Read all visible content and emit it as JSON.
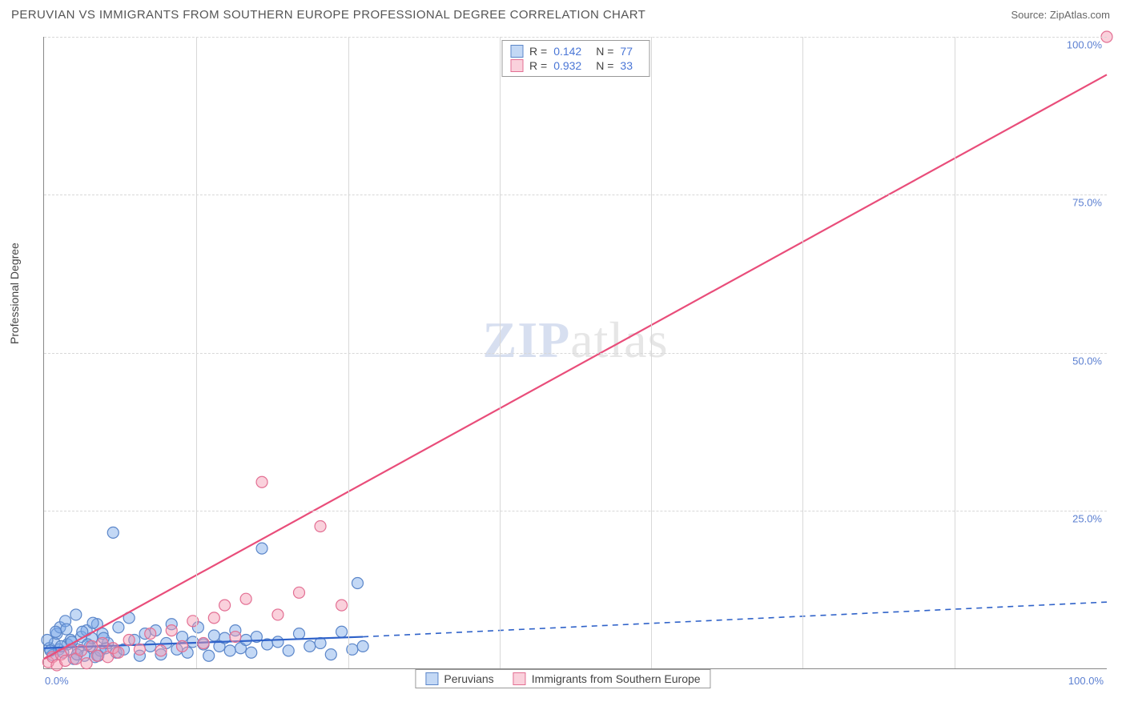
{
  "header": {
    "title": "PERUVIAN VS IMMIGRANTS FROM SOUTHERN EUROPE PROFESSIONAL DEGREE CORRELATION CHART",
    "source_prefix": "Source: ",
    "source_name": "ZipAtlas.com"
  },
  "chart": {
    "type": "scatter",
    "ylabel": "Professional Degree",
    "xlim": [
      0,
      100
    ],
    "ylim": [
      0,
      100
    ],
    "xtick_labels": {
      "min": "0.0%",
      "max": "100.0%"
    },
    "ytick_positions": [
      25,
      50,
      75,
      100
    ],
    "ytick_labels": [
      "25.0%",
      "50.0%",
      "75.0%",
      "100.0%"
    ],
    "xgrid_positions": [
      14.3,
      28.6,
      42.9,
      57.1,
      71.4,
      85.7
    ],
    "grid_color": "#d8d8d8",
    "background_color": "#ffffff",
    "axis_color": "#888888",
    "tick_label_color": "#5b7fd1",
    "watermark": {
      "zip": "ZIP",
      "atlas": "atlas"
    },
    "series": [
      {
        "id": "peruvians",
        "label": "Peruvians",
        "fill_color": "rgba(122,168,232,0.45)",
        "stroke_color": "#5b86c9",
        "line_color": "#2f62c9",
        "marker_radius": 7,
        "R": "0.142",
        "N": "77",
        "regression": {
          "x1": 0,
          "y1": 3.2,
          "x2": 30,
          "y2": 5.0,
          "dash_from_x": 30,
          "dash_to_x": 100,
          "dash_to_y": 10.5
        },
        "points": [
          [
            0.5,
            3.2
          ],
          [
            0.8,
            2.1
          ],
          [
            1.0,
            4.0
          ],
          [
            1.2,
            5.5
          ],
          [
            1.4,
            3.0
          ],
          [
            1.5,
            6.5
          ],
          [
            1.8,
            2.5
          ],
          [
            2.0,
            7.5
          ],
          [
            2.2,
            3.8
          ],
          [
            2.5,
            4.5
          ],
          [
            2.8,
            1.5
          ],
          [
            3.0,
            8.5
          ],
          [
            3.2,
            3.0
          ],
          [
            3.5,
            5.0
          ],
          [
            3.8,
            2.0
          ],
          [
            4.0,
            6.0
          ],
          [
            4.3,
            3.5
          ],
          [
            4.5,
            4.8
          ],
          [
            4.8,
            1.8
          ],
          [
            5.0,
            7.0
          ],
          [
            5.3,
            2.8
          ],
          [
            5.5,
            5.5
          ],
          [
            5.8,
            3.2
          ],
          [
            6.0,
            4.0
          ],
          [
            6.5,
            21.5
          ],
          [
            6.8,
            2.5
          ],
          [
            7.0,
            6.5
          ],
          [
            7.5,
            3.0
          ],
          [
            8.0,
            8.0
          ],
          [
            8.5,
            4.5
          ],
          [
            9.0,
            2.0
          ],
          [
            9.5,
            5.5
          ],
          [
            10.0,
            3.5
          ],
          [
            10.5,
            6.0
          ],
          [
            11.0,
            2.2
          ],
          [
            11.5,
            4.0
          ],
          [
            12.0,
            7.0
          ],
          [
            12.5,
            3.0
          ],
          [
            13.0,
            5.0
          ],
          [
            13.5,
            2.5
          ],
          [
            14.0,
            4.2
          ],
          [
            14.5,
            6.5
          ],
          [
            15.0,
            3.8
          ],
          [
            15.5,
            2.0
          ],
          [
            16.0,
            5.2
          ],
          [
            16.5,
            3.5
          ],
          [
            17.0,
            4.8
          ],
          [
            17.5,
            2.8
          ],
          [
            18.0,
            6.0
          ],
          [
            18.5,
            3.2
          ],
          [
            19.0,
            4.5
          ],
          [
            19.5,
            2.5
          ],
          [
            20.0,
            5.0
          ],
          [
            20.5,
            19.0
          ],
          [
            21.0,
            3.8
          ],
          [
            22.0,
            4.2
          ],
          [
            23.0,
            2.8
          ],
          [
            24.0,
            5.5
          ],
          [
            25.0,
            3.5
          ],
          [
            26.0,
            4.0
          ],
          [
            27.0,
            2.2
          ],
          [
            28.0,
            5.8
          ],
          [
            29.0,
            3.0
          ],
          [
            29.5,
            13.5
          ],
          [
            30.0,
            3.5
          ],
          [
            0.3,
            4.5
          ],
          [
            0.6,
            2.8
          ],
          [
            1.1,
            5.8
          ],
          [
            1.6,
            3.5
          ],
          [
            2.1,
            6.2
          ],
          [
            2.6,
            4.2
          ],
          [
            3.1,
            2.2
          ],
          [
            3.6,
            5.8
          ],
          [
            4.1,
            3.8
          ],
          [
            4.6,
            7.2
          ],
          [
            5.1,
            2.0
          ],
          [
            5.6,
            4.8
          ]
        ]
      },
      {
        "id": "southern_europe",
        "label": "Immigrants from Southern Europe",
        "fill_color": "rgba(244,154,178,0.45)",
        "stroke_color": "#e36f93",
        "line_color": "#e94d7a",
        "marker_radius": 7,
        "R": "0.932",
        "N": "33",
        "regression": {
          "x1": 0,
          "y1": 1.5,
          "x2": 100,
          "y2": 94.0
        },
        "points": [
          [
            0.4,
            1.0
          ],
          [
            0.8,
            1.8
          ],
          [
            1.2,
            0.5
          ],
          [
            1.6,
            2.2
          ],
          [
            2.0,
            1.2
          ],
          [
            2.5,
            3.0
          ],
          [
            3.0,
            1.5
          ],
          [
            3.5,
            2.8
          ],
          [
            4.0,
            0.8
          ],
          [
            4.5,
            3.5
          ],
          [
            5.0,
            2.0
          ],
          [
            5.5,
            4.0
          ],
          [
            6.0,
            1.8
          ],
          [
            6.5,
            3.2
          ],
          [
            7.0,
            2.5
          ],
          [
            8.0,
            4.5
          ],
          [
            9.0,
            3.0
          ],
          [
            10.0,
            5.5
          ],
          [
            11.0,
            2.8
          ],
          [
            12.0,
            6.0
          ],
          [
            13.0,
            3.5
          ],
          [
            14.0,
            7.5
          ],
          [
            15.0,
            4.0
          ],
          [
            16.0,
            8.0
          ],
          [
            17.0,
            10.0
          ],
          [
            18.0,
            5.0
          ],
          [
            19.0,
            11.0
          ],
          [
            20.5,
            29.5
          ],
          [
            22.0,
            8.5
          ],
          [
            24.0,
            12.0
          ],
          [
            26.0,
            22.5
          ],
          [
            28.0,
            10.0
          ],
          [
            100.0,
            100.0
          ]
        ]
      }
    ],
    "stats_box": {
      "r_label": "R  =",
      "n_label": "N  ="
    },
    "bottom_legend": {
      "items": [
        "Peruvians",
        "Immigrants from Southern Europe"
      ]
    }
  }
}
